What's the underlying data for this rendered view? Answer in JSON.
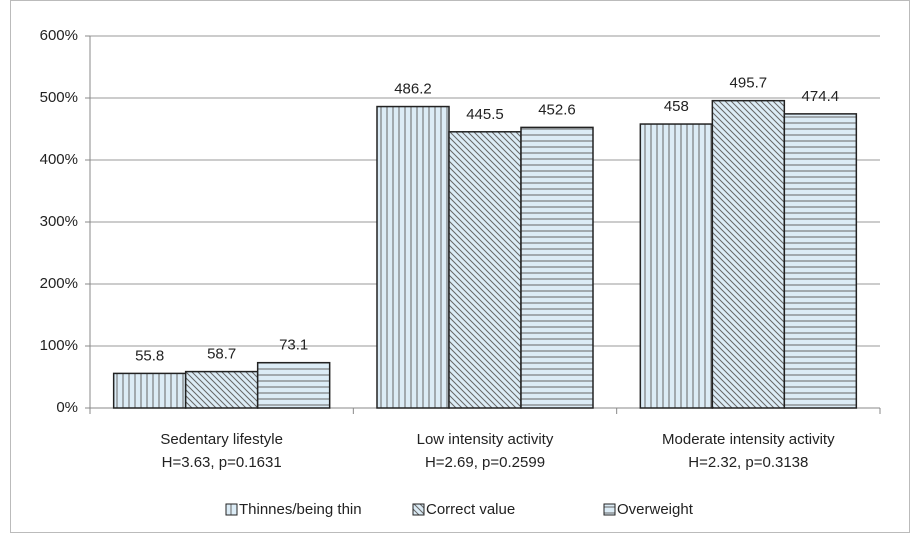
{
  "chart_data": {
    "type": "bar",
    "categories": [
      "Sedentary lifestyle",
      "Low intensity activity",
      "Moderate intensity activity"
    ],
    "category_stats": [
      "H=3.63, p=0.1631",
      "H=2.69, p=0.2599",
      "H=2.32, p=0.3138"
    ],
    "series": [
      {
        "name": "Thinnes/being thin",
        "color": "#dcecf6",
        "pattern": "vertical",
        "values": [
          55.8,
          486.2,
          458
        ]
      },
      {
        "name": "Correct value",
        "color": "#dcecf6",
        "pattern": "diagonal",
        "values": [
          58.7,
          445.5,
          495.7
        ]
      },
      {
        "name": "Overweight",
        "color": "#dcecf6",
        "pattern": "horizontal",
        "values": [
          73.1,
          452.6,
          474.4
        ]
      }
    ],
    "ylim": [
      0,
      600
    ],
    "yticks": [
      {
        "value": 0,
        "label": "0%"
      },
      {
        "value": 100,
        "label": "100%"
      },
      {
        "value": 200,
        "label": "200%"
      },
      {
        "value": 300,
        "label": "300%"
      },
      {
        "value": 400,
        "label": "400%"
      },
      {
        "value": 500,
        "label": "500%"
      },
      {
        "value": 600,
        "label": "600%"
      }
    ],
    "grid": true,
    "legend": "bottom"
  }
}
